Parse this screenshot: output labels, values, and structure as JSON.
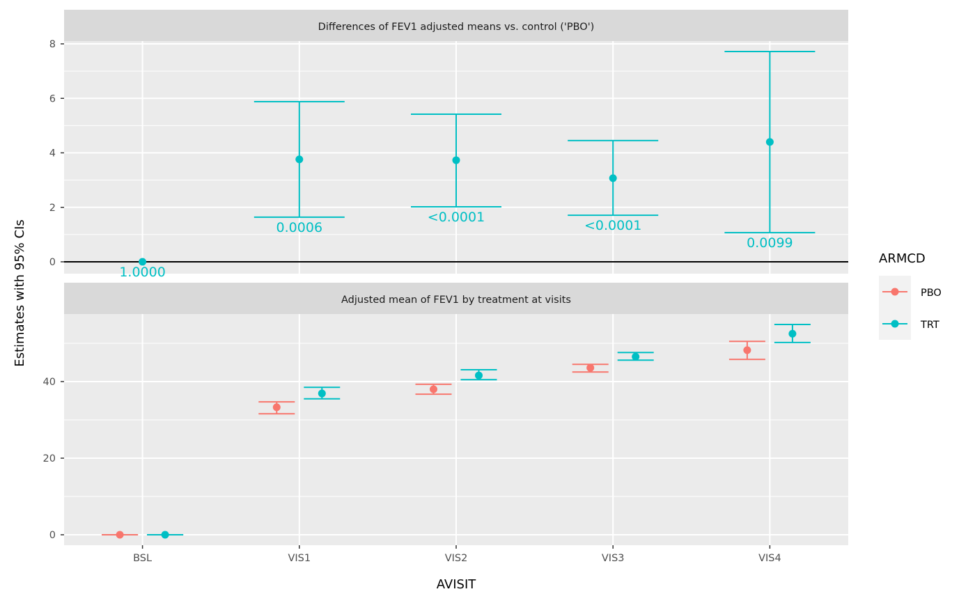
{
  "chart_data": [
    {
      "type": "scatter",
      "subtype": "errorbar",
      "title": "Differences of FEV1 adjusted means vs. control ('PBO')",
      "xlabel": "AVISIT",
      "ylabel": "Estimates with 95% CIs",
      "categories": [
        "BSL",
        "VIS1",
        "VIS2",
        "VIS3",
        "VIS4"
      ],
      "ylim": [
        -0.4,
        8.2
      ],
      "yticks": [
        0,
        2,
        4,
        6,
        8
      ],
      "reference_line": 0,
      "grid": true,
      "series": [
        {
          "name": "TRT",
          "color": "#00BFC4",
          "estimate": [
            0.0,
            3.76,
            3.73,
            3.07,
            4.4
          ],
          "lower": [
            null,
            1.64,
            2.02,
            1.71,
            1.07
          ],
          "upper": [
            null,
            5.88,
            5.42,
            4.45,
            7.72
          ],
          "p_values": [
            "1.0000",
            "0.0006",
            "<0.0001",
            "<0.0001",
            "0.0099"
          ]
        }
      ]
    },
    {
      "type": "scatter",
      "subtype": "errorbar",
      "title": "Adjusted mean of FEV1 by treatment at visits",
      "xlabel": "AVISIT",
      "ylabel": "Estimates with 95% CIs",
      "categories": [
        "BSL",
        "VIS1",
        "VIS2",
        "VIS3",
        "VIS4"
      ],
      "ylim": [
        -2.5,
        57.6
      ],
      "yticks": [
        0,
        20,
        40
      ],
      "grid": true,
      "series": [
        {
          "name": "PBO",
          "color": "#F8766D",
          "estimate": [
            0.0,
            33.3,
            38.0,
            43.6,
            48.2
          ],
          "lower": [
            0.0,
            31.6,
            36.7,
            42.5,
            45.8
          ],
          "upper": [
            0.0,
            34.7,
            39.3,
            44.5,
            50.5
          ]
        },
        {
          "name": "TRT",
          "color": "#00BFC4",
          "estimate": [
            0.0,
            36.9,
            41.6,
            46.5,
            52.5
          ],
          "lower": [
            0.0,
            35.5,
            40.5,
            45.6,
            50.2
          ],
          "upper": [
            0.0,
            38.5,
            43.1,
            47.6,
            54.9
          ]
        }
      ]
    }
  ],
  "legend": {
    "title": "ARMCD",
    "position": "right",
    "items": [
      {
        "label": "PBO",
        "color": "#F8766D"
      },
      {
        "label": "TRT",
        "color": "#00BFC4"
      }
    ]
  },
  "axis": {
    "xlabel": "AVISIT",
    "ylabel": "Estimates with 95% CIs"
  }
}
